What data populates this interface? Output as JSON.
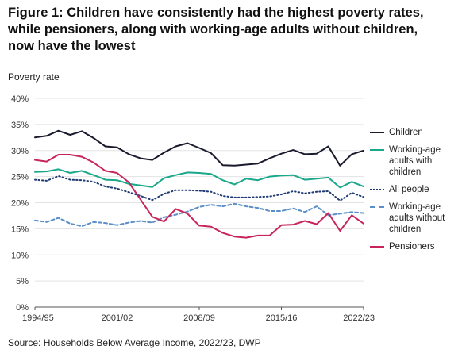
{
  "title_lines": [
    "Figure 1: Children have consistently had the highest poverty rates,",
    "while pensioners, along with working-age adults without children,",
    "now have the lowest"
  ],
  "source": "Source: Households Below Average Income, 2022/23, DWP",
  "chart_data": {
    "type": "line",
    "ylabel": "Poverty rate",
    "xlabel": "",
    "ylim": [
      0,
      40
    ],
    "yticks": [
      "0%",
      "5%",
      "10%",
      "15%",
      "20%",
      "25%",
      "30%",
      "35%",
      "40%"
    ],
    "xtick_labels": [
      "1994/95",
      "2001/02",
      "2008/09",
      "2015/16",
      "2022/23"
    ],
    "xtick_positions": [
      0,
      7,
      14,
      21,
      28
    ],
    "grid": "horizontal",
    "legend_position": "right",
    "x": [
      "1994/95",
      "1995/96",
      "1996/97",
      "1997/98",
      "1998/99",
      "1999/00",
      "2000/01",
      "2001/02",
      "2002/03",
      "2003/04",
      "2004/05",
      "2005/06",
      "2006/07",
      "2007/08",
      "2008/09",
      "2009/10",
      "2010/11",
      "2011/12",
      "2012/13",
      "2013/14",
      "2014/15",
      "2015/16",
      "2016/17",
      "2017/18",
      "2018/19",
      "2019/20",
      "2020/21",
      "2021/22",
      "2022/23"
    ],
    "series": [
      {
        "name": "Children",
        "color": "#1a1a2e",
        "style": "solid",
        "values": [
          32.5,
          32.8,
          33.8,
          33.0,
          33.7,
          32.4,
          30.8,
          30.6,
          29.3,
          28.5,
          28.2,
          29.6,
          30.8,
          31.4,
          30.5,
          29.5,
          27.2,
          27.1,
          27.3,
          27.5,
          28.5,
          29.4,
          30.1,
          29.3,
          29.4,
          30.8,
          27.1,
          29.3,
          30.0
        ]
      },
      {
        "name": "Working-age adults with children",
        "color": "#1aa88a",
        "style": "solid",
        "values": [
          25.9,
          26.0,
          26.4,
          25.7,
          26.1,
          25.3,
          24.4,
          24.3,
          23.6,
          23.3,
          23.0,
          24.7,
          25.3,
          25.8,
          25.7,
          25.5,
          24.3,
          23.5,
          24.6,
          24.3,
          25.0,
          25.2,
          25.3,
          24.4,
          24.6,
          24.8,
          22.9,
          24.0,
          23.1
        ]
      },
      {
        "name": "All people",
        "color": "#1f3b73",
        "style": "dotted",
        "values": [
          24.4,
          24.2,
          25.1,
          24.4,
          24.3,
          24.0,
          23.1,
          22.7,
          22.0,
          21.3,
          20.5,
          21.7,
          22.4,
          22.4,
          22.3,
          22.1,
          21.3,
          21.0,
          21.0,
          21.1,
          21.2,
          21.6,
          22.2,
          21.8,
          22.1,
          22.2,
          20.4,
          21.9,
          21.1
        ]
      },
      {
        "name": "Working-age adults without children",
        "color": "#5b8fc7",
        "style": "dashed",
        "values": [
          16.6,
          16.3,
          17.1,
          16.0,
          15.5,
          16.3,
          16.1,
          15.7,
          16.2,
          16.5,
          16.2,
          17.2,
          17.7,
          18.3,
          19.2,
          19.6,
          19.3,
          19.8,
          19.3,
          19.0,
          18.4,
          18.4,
          18.9,
          18.2,
          19.3,
          17.6,
          17.9,
          18.2,
          18.0
        ]
      },
      {
        "name": "Pensioners",
        "color": "#c8245c",
        "style": "solid",
        "values": [
          28.2,
          27.9,
          29.2,
          29.2,
          28.8,
          27.7,
          26.1,
          25.7,
          23.9,
          20.6,
          17.3,
          16.4,
          18.8,
          17.9,
          15.6,
          15.4,
          14.2,
          13.5,
          13.3,
          13.7,
          13.7,
          15.7,
          15.8,
          16.5,
          15.9,
          18.0,
          14.6,
          17.6,
          16.0
        ]
      }
    ]
  }
}
